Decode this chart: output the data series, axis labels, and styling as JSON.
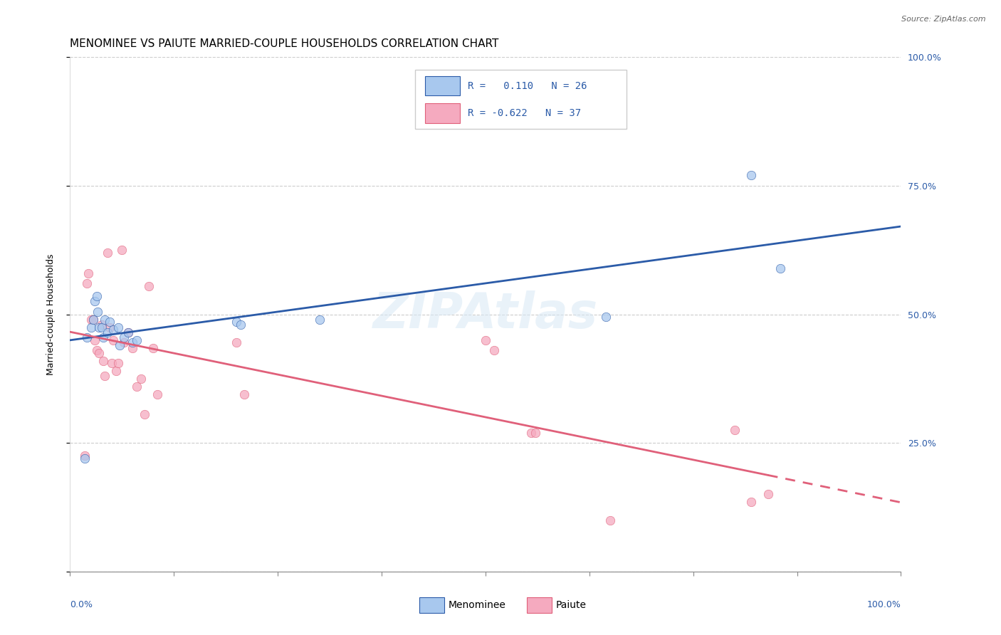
{
  "title": "MENOMINEE VS PAIUTE MARRIED-COUPLE HOUSEHOLDS CORRELATION CHART",
  "source": "Source: ZipAtlas.com",
  "ylabel": "Married-couple Households",
  "r1": "0.110",
  "n1": "26",
  "r2": "-0.622",
  "n2": "37",
  "xlim": [
    0.0,
    1.0
  ],
  "ylim": [
    0.0,
    1.0
  ],
  "color_menominee": "#A8C8EE",
  "color_paiute": "#F5AABF",
  "color_line_menominee": "#2B5BA8",
  "color_line_paiute": "#E0607A",
  "menominee_x": [
    0.018,
    0.02,
    0.025,
    0.028,
    0.03,
    0.032,
    0.033,
    0.035,
    0.038,
    0.04,
    0.042,
    0.045,
    0.048,
    0.052,
    0.058,
    0.06,
    0.065,
    0.07,
    0.075,
    0.08,
    0.2,
    0.205,
    0.3,
    0.645,
    0.82,
    0.855
  ],
  "menominee_y": [
    0.22,
    0.455,
    0.475,
    0.49,
    0.525,
    0.535,
    0.505,
    0.475,
    0.475,
    0.455,
    0.49,
    0.465,
    0.485,
    0.47,
    0.475,
    0.44,
    0.455,
    0.465,
    0.445,
    0.45,
    0.485,
    0.48,
    0.49,
    0.495,
    0.77,
    0.59
  ],
  "paiute_x": [
    0.018,
    0.02,
    0.022,
    0.025,
    0.028,
    0.03,
    0.032,
    0.035,
    0.038,
    0.04,
    0.042,
    0.045,
    0.048,
    0.05,
    0.052,
    0.055,
    0.058,
    0.062,
    0.065,
    0.07,
    0.075,
    0.08,
    0.085,
    0.09,
    0.095,
    0.1,
    0.105,
    0.2,
    0.21,
    0.5,
    0.51,
    0.555,
    0.56,
    0.65,
    0.8,
    0.82,
    0.84
  ],
  "paiute_y": [
    0.225,
    0.56,
    0.58,
    0.49,
    0.49,
    0.45,
    0.43,
    0.425,
    0.48,
    0.41,
    0.38,
    0.62,
    0.475,
    0.405,
    0.45,
    0.39,
    0.405,
    0.625,
    0.445,
    0.465,
    0.435,
    0.36,
    0.375,
    0.305,
    0.555,
    0.435,
    0.345,
    0.445,
    0.345,
    0.45,
    0.43,
    0.27,
    0.27,
    0.1,
    0.275,
    0.135,
    0.15
  ],
  "background_color": "#FFFFFF",
  "grid_color": "#CCCCCC",
  "title_fontsize": 11,
  "axis_label_fontsize": 9,
  "tick_fontsize": 9,
  "legend_fontsize": 10,
  "marker_size": 80
}
